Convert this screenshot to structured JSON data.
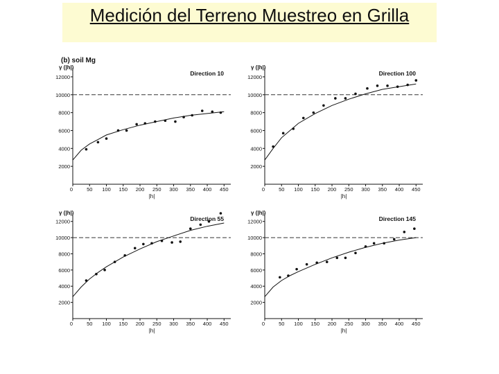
{
  "slide": {
    "title": "Medición del Terreno Muestreo en Grilla",
    "colors": {
      "title_bg": "#fdfbd2",
      "ink": "#111111",
      "sill": "#333333"
    }
  },
  "figure": {
    "label": "(b) soil Mg"
  },
  "chart_data": [
    {
      "type": "scatter",
      "title": "Direction 10",
      "ylabel": "γ (|h|)",
      "xlabel": "|h|",
      "xlim": [
        0,
        470
      ],
      "ylim": [
        0,
        13000
      ],
      "xticks": [
        0,
        50,
        100,
        150,
        200,
        250,
        300,
        350,
        400,
        450
      ],
      "yticks": [
        2000,
        4000,
        6000,
        8000,
        10000,
        12000
      ],
      "ytick_labels": [
        "2000",
        "4000",
        "6000",
        "8000",
        "10000",
        "12000"
      ],
      "sill": 10000,
      "grid": false,
      "series": [
        {
          "kind": "points",
          "x": [
            40,
            75,
            100,
            135,
            160,
            190,
            215,
            245,
            275,
            305,
            330,
            355,
            385,
            415,
            440
          ],
          "y": [
            3900,
            4700,
            5100,
            6000,
            6000,
            6700,
            6800,
            7000,
            7100,
            7000,
            7500,
            7700,
            8200,
            8100,
            8000
          ]
        },
        {
          "kind": "model",
          "x": [
            0,
            25,
            50,
            75,
            100,
            150,
            200,
            250,
            300,
            350,
            400,
            450
          ],
          "y": [
            2700,
            3800,
            4500,
            5000,
            5500,
            6100,
            6600,
            7000,
            7400,
            7700,
            7900,
            8100
          ]
        }
      ]
    },
    {
      "type": "scatter",
      "title": "Direction 100",
      "ylabel": "γ (|h|)",
      "xlabel": "|h|",
      "xlim": [
        0,
        470
      ],
      "ylim": [
        0,
        13000
      ],
      "xticks": [
        0,
        50,
        100,
        150,
        200,
        250,
        300,
        350,
        400,
        450
      ],
      "yticks": [
        2000,
        4000,
        6000,
        8000,
        10000,
        12000
      ],
      "ytick_labels": [
        "2000",
        "4000",
        "6000",
        "8000",
        "10000",
        "12000"
      ],
      "sill": 10000,
      "grid": false,
      "series": [
        {
          "kind": "points",
          "x": [
            25,
            55,
            85,
            115,
            145,
            175,
            210,
            240,
            270,
            305,
            335,
            365,
            395,
            425,
            450
          ],
          "y": [
            4200,
            5700,
            6200,
            7400,
            8000,
            8800,
            9600,
            9600,
            10100,
            10700,
            11000,
            11000,
            10900,
            11100,
            11600
          ]
        },
        {
          "kind": "model",
          "x": [
            0,
            25,
            50,
            75,
            100,
            150,
            200,
            250,
            300,
            350,
            400,
            450
          ],
          "y": [
            2700,
            4000,
            5200,
            6000,
            6800,
            7900,
            8800,
            9500,
            10100,
            10600,
            10900,
            11200
          ]
        }
      ]
    },
    {
      "type": "scatter",
      "title": "Direction 55",
      "ylabel": "γ (|h|)",
      "xlabel": "|h|",
      "xlim": [
        0,
        470
      ],
      "ylim": [
        0,
        13000
      ],
      "xticks": [
        0,
        50,
        100,
        150,
        200,
        250,
        300,
        350,
        400,
        450
      ],
      "yticks": [
        2000,
        4000,
        6000,
        8000,
        10000,
        12000
      ],
      "ytick_labels": [
        "2000",
        "4000",
        "6000",
        "8000",
        "10000",
        "12000"
      ],
      "sill": 10000,
      "grid": false,
      "series": [
        {
          "kind": "points",
          "x": [
            40,
            70,
            95,
            125,
            155,
            185,
            210,
            235,
            265,
            295,
            320,
            350,
            380,
            405,
            440
          ],
          "y": [
            4700,
            5500,
            6000,
            7000,
            7800,
            8700,
            9200,
            9300,
            9600,
            9400,
            9500,
            11100,
            11600,
            12000,
            13000
          ]
        },
        {
          "kind": "model",
          "x": [
            0,
            25,
            50,
            75,
            100,
            150,
            200,
            250,
            300,
            350,
            400,
            450
          ],
          "y": [
            2700,
            3900,
            4900,
            5700,
            6400,
            7600,
            8600,
            9500,
            10200,
            10900,
            11400,
            11800
          ]
        }
      ]
    },
    {
      "type": "scatter",
      "title": "Direction 145",
      "ylabel": "γ (|h|)",
      "xlabel": "|h|",
      "xlim": [
        0,
        470
      ],
      "ylim": [
        0,
        13000
      ],
      "xticks": [
        0,
        50,
        100,
        150,
        200,
        250,
        300,
        350,
        400,
        450
      ],
      "yticks": [
        2000,
        4000,
        6000,
        8000,
        10000,
        12000
      ],
      "ytick_labels": [
        "2000",
        "4000",
        "6000",
        "8000",
        "10000",
        "12000"
      ],
      "sill": 10000,
      "grid": false,
      "series": [
        {
          "kind": "points",
          "x": [
            45,
            70,
            95,
            125,
            155,
            185,
            215,
            240,
            270,
            300,
            325,
            355,
            385,
            415,
            445
          ],
          "y": [
            5100,
            5300,
            6100,
            6700,
            6900,
            7000,
            7500,
            7500,
            8100,
            8900,
            9300,
            9300,
            9800,
            10700,
            11100
          ]
        },
        {
          "kind": "model",
          "x": [
            0,
            25,
            50,
            75,
            100,
            150,
            200,
            250,
            300,
            350,
            400,
            450
          ],
          "y": [
            2700,
            3900,
            4700,
            5300,
            5800,
            6700,
            7500,
            8200,
            8800,
            9300,
            9700,
            10000
          ]
        }
      ]
    }
  ]
}
